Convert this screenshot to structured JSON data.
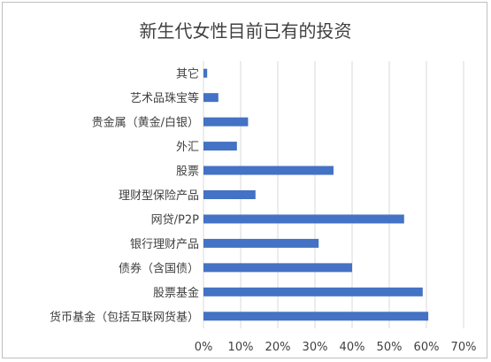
{
  "chart_data": {
    "type": "bar",
    "orientation": "horizontal",
    "title": "新生代女性目前已有的投资",
    "categories": [
      "其它",
      "艺术品珠宝等",
      "贵金属（黄金/白银）",
      "外汇",
      "股票",
      "理财型保险产品",
      "网贷/P2P",
      "银行理财产品",
      "债券（含国债）",
      "股票基金",
      "货币基金（包括互联网货基）"
    ],
    "values": [
      1,
      4,
      12,
      9,
      35,
      14,
      54,
      31,
      40,
      59,
      60.5
    ],
    "xlim": [
      0,
      70
    ],
    "x_ticks": [
      "0%",
      "10%",
      "20%",
      "30%",
      "40%",
      "50%",
      "60%",
      "70%"
    ],
    "value_unit": "%",
    "grid": true,
    "legend": "none",
    "colors": {
      "bar": "#4472c4",
      "grid": "#d9d9d9",
      "text": "#404040"
    }
  }
}
